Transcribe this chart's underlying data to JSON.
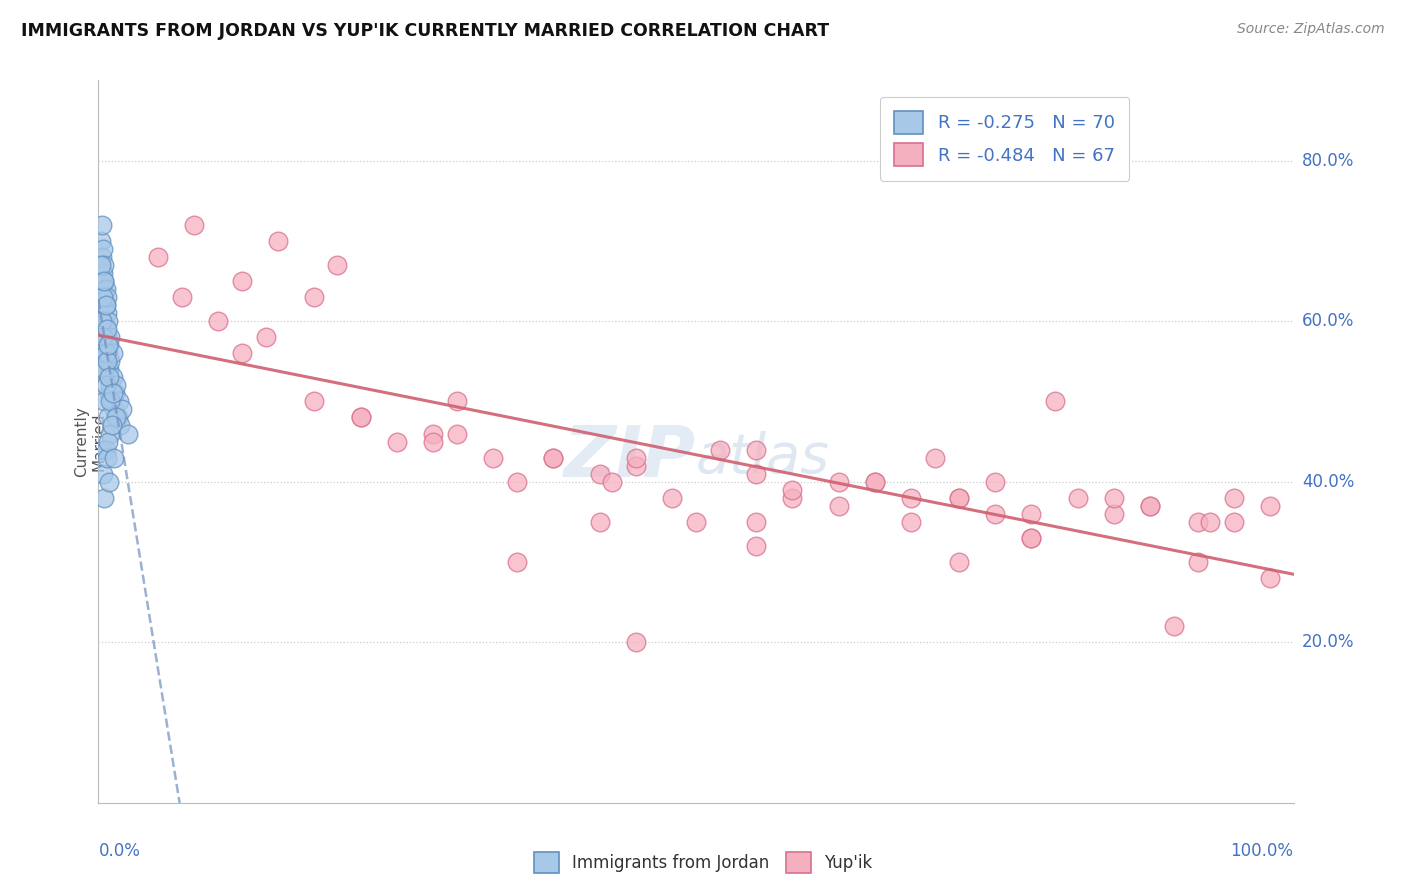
{
  "title": "IMMIGRANTS FROM JORDAN VS YUP'IK CURRENTLY MARRIED CORRELATION CHART",
  "source": "Source: ZipAtlas.com",
  "ylabel": "Currently\nMarried",
  "R_jordan": -0.275,
  "N_jordan": 70,
  "R_yupik": -0.484,
  "N_yupik": 67,
  "blue_fill": "#a8c8e8",
  "blue_edge": "#6090c0",
  "pink_fill": "#f5b0c0",
  "pink_edge": "#d87090",
  "blue_line_color": "#7090c0",
  "pink_line_color": "#d06070",
  "jordan_x": [
    0.2,
    0.3,
    0.3,
    0.3,
    0.4,
    0.4,
    0.4,
    0.4,
    0.5,
    0.5,
    0.5,
    0.5,
    0.5,
    0.6,
    0.6,
    0.6,
    0.6,
    0.7,
    0.7,
    0.7,
    0.7,
    0.8,
    0.8,
    0.8,
    0.9,
    0.9,
    0.9,
    1.0,
    1.0,
    1.0,
    1.1,
    1.2,
    1.2,
    1.3,
    1.4,
    1.5,
    1.6,
    1.7,
    1.8,
    2.0,
    0.2,
    0.3,
    0.3,
    0.4,
    0.4,
    0.5,
    0.5,
    0.5,
    0.6,
    0.6,
    0.6,
    0.7,
    0.7,
    0.8,
    0.8,
    0.9,
    1.0,
    1.0,
    1.2,
    1.5,
    0.3,
    0.4,
    0.5,
    0.6,
    0.7,
    0.8,
    0.9,
    1.1,
    1.3,
    2.5
  ],
  "jordan_y": [
    70,
    68,
    65,
    72,
    66,
    64,
    61,
    69,
    63,
    60,
    58,
    65,
    67,
    62,
    59,
    57,
    64,
    61,
    58,
    55,
    63,
    56,
    53,
    60,
    57,
    54,
    51,
    55,
    52,
    58,
    50,
    53,
    56,
    49,
    51,
    52,
    48,
    50,
    47,
    49,
    67,
    60,
    56,
    63,
    58,
    54,
    50,
    65,
    56,
    52,
    62,
    59,
    55,
    57,
    48,
    53,
    50,
    46,
    51,
    48,
    44,
    41,
    38,
    44,
    43,
    45,
    40,
    47,
    43,
    46
  ],
  "yupik_x": [
    5,
    8,
    12,
    15,
    18,
    22,
    25,
    30,
    33,
    38,
    42,
    45,
    48,
    52,
    55,
    58,
    62,
    65,
    68,
    72,
    75,
    78,
    82,
    85,
    88,
    92,
    95,
    98,
    10,
    20,
    28,
    35,
    43,
    50,
    58,
    65,
    72,
    80,
    88,
    95,
    7,
    14,
    22,
    30,
    38,
    45,
    55,
    62,
    70,
    78,
    85,
    93,
    98,
    18,
    28,
    42,
    55,
    68,
    78,
    90,
    12,
    35,
    55,
    75,
    92,
    45,
    72
  ],
  "yupik_y": [
    68,
    72,
    65,
    70,
    63,
    48,
    45,
    50,
    43,
    43,
    41,
    42,
    38,
    44,
    41,
    38,
    40,
    40,
    38,
    38,
    36,
    36,
    38,
    36,
    37,
    35,
    38,
    37,
    60,
    67,
    46,
    40,
    40,
    35,
    39,
    40,
    38,
    50,
    37,
    35,
    63,
    58,
    48,
    46,
    43,
    43,
    44,
    37,
    43,
    33,
    38,
    35,
    28,
    50,
    45,
    35,
    32,
    35,
    33,
    22,
    56,
    30,
    35,
    40,
    30,
    20,
    30
  ],
  "xlim": [
    0,
    100
  ],
  "ylim": [
    0,
    90
  ],
  "ytick_positions": [
    20,
    40,
    60,
    80
  ],
  "ytick_labels": [
    "20.0%",
    "40.0%",
    "60.0%",
    "80.0%"
  ],
  "watermark_zip": "ZIP",
  "watermark_atlas": "atlas",
  "bottom_label1": "Immigrants from Jordan",
  "bottom_label2": "Yup'ik",
  "legend1_r": "R = -0.275",
  "legend1_n": "N = 70",
  "legend2_r": "R = -0.484",
  "legend2_n": "N = 67"
}
